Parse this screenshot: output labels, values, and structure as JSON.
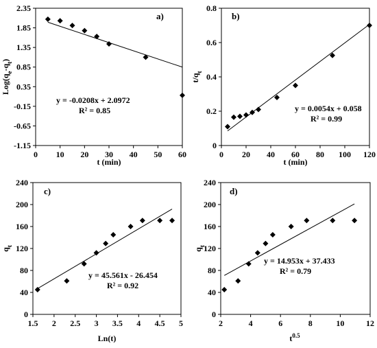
{
  "chart_data": [
    {
      "type": "scatter",
      "panel_label": "a)",
      "xlabel": "t (min)",
      "ylabel": "Log(qe-qt)",
      "ylabel_parts": [
        "Log(q",
        "e",
        "-q",
        "t",
        ")"
      ],
      "xlim": [
        0,
        60
      ],
      "ylim": [
        -1.15,
        2.35
      ],
      "x_ticks": [
        0,
        10,
        20,
        30,
        40,
        50,
        60
      ],
      "x_tick_labels": [
        "0",
        "10",
        "20",
        "30",
        "40",
        "50",
        "60"
      ],
      "y_ticks": [
        -1.15,
        -0.65,
        -0.15,
        0.35,
        0.85,
        1.35,
        1.85,
        2.35
      ],
      "y_tick_labels": [
        "-1.15",
        "-0.65",
        "-0.15",
        "0.35",
        "0.85",
        "1.35",
        "1.85",
        "2.35"
      ],
      "x": [
        5,
        10,
        15,
        20,
        25,
        30,
        45,
        60
      ],
      "y": [
        2.07,
        2.03,
        1.91,
        1.78,
        1.63,
        1.44,
        1.1,
        0.13
      ],
      "trendline": {
        "slope": -0.0208,
        "intercept": 2.0972,
        "x_range": [
          5,
          60
        ]
      },
      "equation": "y = -0.0208x + 2.0972",
      "r2": "R² = 0.85",
      "grid": false
    },
    {
      "type": "scatter",
      "panel_label": "b)",
      "xlabel": "t (min)",
      "ylabel": "t/qt",
      "ylabel_parts": [
        "t/q",
        "t"
      ],
      "xlim": [
        0,
        120
      ],
      "ylim": [
        0,
        0.8
      ],
      "x_ticks": [
        0,
        20,
        40,
        60,
        80,
        100,
        120
      ],
      "x_tick_labels": [
        "0",
        "20",
        "40",
        "60",
        "80",
        "100",
        "120"
      ],
      "y_ticks": [
        0,
        0.2,
        0.4,
        0.6,
        0.8
      ],
      "y_tick_labels": [
        "0",
        "0.2",
        "0.4",
        "0.6",
        "0.8"
      ],
      "x": [
        5,
        10,
        15,
        20,
        25,
        30,
        45,
        60,
        90,
        120
      ],
      "y": [
        0.11,
        0.165,
        0.17,
        0.178,
        0.193,
        0.21,
        0.28,
        0.35,
        0.525,
        0.7
      ],
      "trendline": {
        "slope": 0.0054,
        "intercept": 0.058,
        "x_range": [
          5,
          120
        ]
      },
      "equation": "y = 0.0054x + 0.058",
      "r2": "R² = 0.99",
      "grid": false
    },
    {
      "type": "scatter",
      "panel_label": "c)",
      "xlabel": "Ln(t)",
      "ylabel": "qt",
      "ylabel_parts": [
        "q",
        "t"
      ],
      "xlim": [
        1.5,
        5
      ],
      "ylim": [
        0,
        240
      ],
      "x_ticks": [
        1.5,
        2,
        2.5,
        3,
        3.5,
        4,
        4.5,
        5
      ],
      "x_tick_labels": [
        "1.5",
        "2",
        "2.5",
        "3",
        "3.5",
        "4",
        "4.5",
        "5"
      ],
      "y_ticks": [
        0,
        40,
        80,
        120,
        160,
        200,
        240
      ],
      "y_tick_labels": [
        "0",
        "40",
        "80",
        "120",
        "160",
        "200",
        "240"
      ],
      "x": [
        1.61,
        2.3,
        2.71,
        3.0,
        3.22,
        3.4,
        3.81,
        4.09,
        4.5,
        4.79
      ],
      "y": [
        45,
        61,
        92,
        112,
        129,
        145,
        160,
        171,
        171,
        171
      ],
      "trendline": {
        "slope": 45.561,
        "intercept": -26.454,
        "x_range": [
          1.61,
          4.79
        ]
      },
      "equation": "y = 45.561x - 26.454",
      "r2": "R² = 0.92",
      "grid": false
    },
    {
      "type": "scatter",
      "panel_label": "d)",
      "xlabel": "t 0.5",
      "xlabel_parts": [
        "t",
        "0.5"
      ],
      "ylabel": "qt",
      "ylabel_parts": [
        "q",
        "t"
      ],
      "xlim": [
        2,
        12
      ],
      "ylim": [
        0,
        240
      ],
      "x_ticks": [
        2,
        4,
        6,
        8,
        10,
        12
      ],
      "x_tick_labels": [
        "2",
        "4",
        "6",
        "8",
        "10",
        "12"
      ],
      "y_ticks": [
        0,
        40,
        80,
        120,
        160,
        200,
        240
      ],
      "y_tick_labels": [
        "0",
        "40",
        "80",
        "120",
        "160",
        "200",
        "240"
      ],
      "x": [
        2.24,
        3.16,
        3.87,
        4.47,
        5.0,
        5.48,
        6.71,
        7.75,
        9.49,
        10.95
      ],
      "y": [
        45,
        61,
        92,
        112,
        129,
        145,
        160,
        171,
        171,
        171
      ],
      "trendline": {
        "slope": 14.953,
        "intercept": 37.433,
        "x_range": [
          2.24,
          10.95
        ]
      },
      "equation": "y = 14.953x + 37.433",
      "r2": "R² = 0.79",
      "grid": false
    }
  ]
}
